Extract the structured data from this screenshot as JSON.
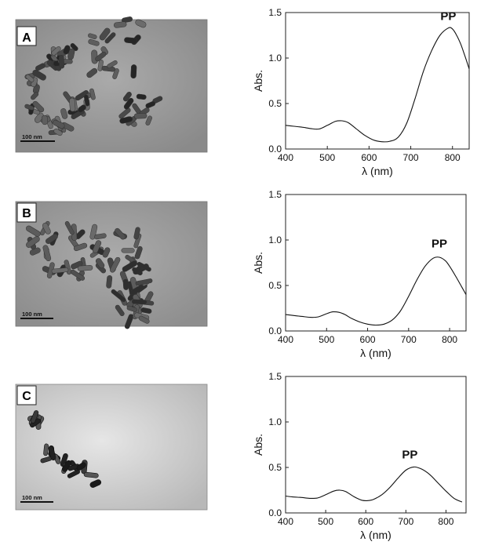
{
  "panels": [
    {
      "letter": "A",
      "scale_bar_label": "100 nm",
      "image_background": "#a4a4a4",
      "image_vignette": "#8a8a8a"
    },
    {
      "letter": "B",
      "scale_bar_label": "100 nm",
      "image_background": "#a8a8a8",
      "image_vignette": "#8c8c8c"
    },
    {
      "letter": "C",
      "scale_bar_label": "100 nm",
      "image_background": "#d0d0d0",
      "image_vignette": "#b4b4b4"
    }
  ],
  "chart_data": [
    {
      "type": "line",
      "xlabel": "λ (nm)",
      "ylabel": "Abs.",
      "xlim": [
        400,
        840
      ],
      "ylim": [
        0,
        1.5
      ],
      "x_ticks": [
        400,
        500,
        600,
        700,
        800
      ],
      "y_ticks": [
        "0.0",
        "0.5",
        "1.0",
        "1.5"
      ],
      "annotation": "PP",
      "annotation_at": [
        790,
        1.42
      ],
      "grid": false,
      "series": [
        {
          "x": [
            400,
            420,
            440,
            460,
            480,
            500,
            520,
            535,
            550,
            570,
            590,
            610,
            630,
            650,
            670,
            690,
            710,
            730,
            750,
            770,
            790,
            800,
            810,
            820,
            830,
            840
          ],
          "y": [
            0.26,
            0.25,
            0.24,
            0.225,
            0.22,
            0.26,
            0.305,
            0.31,
            0.29,
            0.22,
            0.15,
            0.1,
            0.08,
            0.085,
            0.13,
            0.28,
            0.55,
            0.85,
            1.08,
            1.25,
            1.33,
            1.32,
            1.25,
            1.15,
            1.02,
            0.88
          ]
        }
      ]
    },
    {
      "type": "line",
      "xlabel": "λ (nm)",
      "ylabel": "Abs.",
      "xlim": [
        400,
        840
      ],
      "ylim": [
        0,
        1.5
      ],
      "x_ticks": [
        400,
        500,
        600,
        700,
        800
      ],
      "y_ticks": [
        "0.0",
        "0.5",
        "1.0",
        "1.5"
      ],
      "annotation": "PP",
      "annotation_at": [
        775,
        0.92
      ],
      "grid": false,
      "series": [
        {
          "x": [
            400,
            420,
            440,
            460,
            480,
            500,
            515,
            530,
            545,
            560,
            580,
            600,
            620,
            640,
            660,
            680,
            700,
            720,
            740,
            760,
            775,
            790,
            800,
            815,
            830,
            840
          ],
          "y": [
            0.18,
            0.17,
            0.16,
            0.15,
            0.155,
            0.19,
            0.21,
            0.205,
            0.18,
            0.14,
            0.1,
            0.075,
            0.065,
            0.075,
            0.12,
            0.22,
            0.38,
            0.56,
            0.71,
            0.8,
            0.81,
            0.77,
            0.71,
            0.6,
            0.48,
            0.4
          ]
        }
      ]
    },
    {
      "type": "line",
      "xlabel": "λ (nm)",
      "ylabel": "Abs.",
      "xlim": [
        400,
        850
      ],
      "ylim": [
        0,
        1.5
      ],
      "x_ticks": [
        400,
        500,
        600,
        700,
        800
      ],
      "y_ticks": [
        "0.0",
        "0.5",
        "1.0",
        "1.5"
      ],
      "annotation": "PP",
      "annotation_at": [
        710,
        0.6
      ],
      "grid": false,
      "series": [
        {
          "x": [
            400,
            420,
            440,
            460,
            480,
            500,
            520,
            535,
            550,
            570,
            590,
            605,
            620,
            640,
            660,
            680,
            700,
            720,
            740,
            760,
            780,
            800,
            820,
            840
          ],
          "y": [
            0.185,
            0.175,
            0.17,
            0.16,
            0.165,
            0.2,
            0.24,
            0.25,
            0.235,
            0.18,
            0.14,
            0.135,
            0.15,
            0.2,
            0.28,
            0.38,
            0.47,
            0.505,
            0.48,
            0.42,
            0.33,
            0.24,
            0.16,
            0.12
          ]
        }
      ]
    }
  ]
}
